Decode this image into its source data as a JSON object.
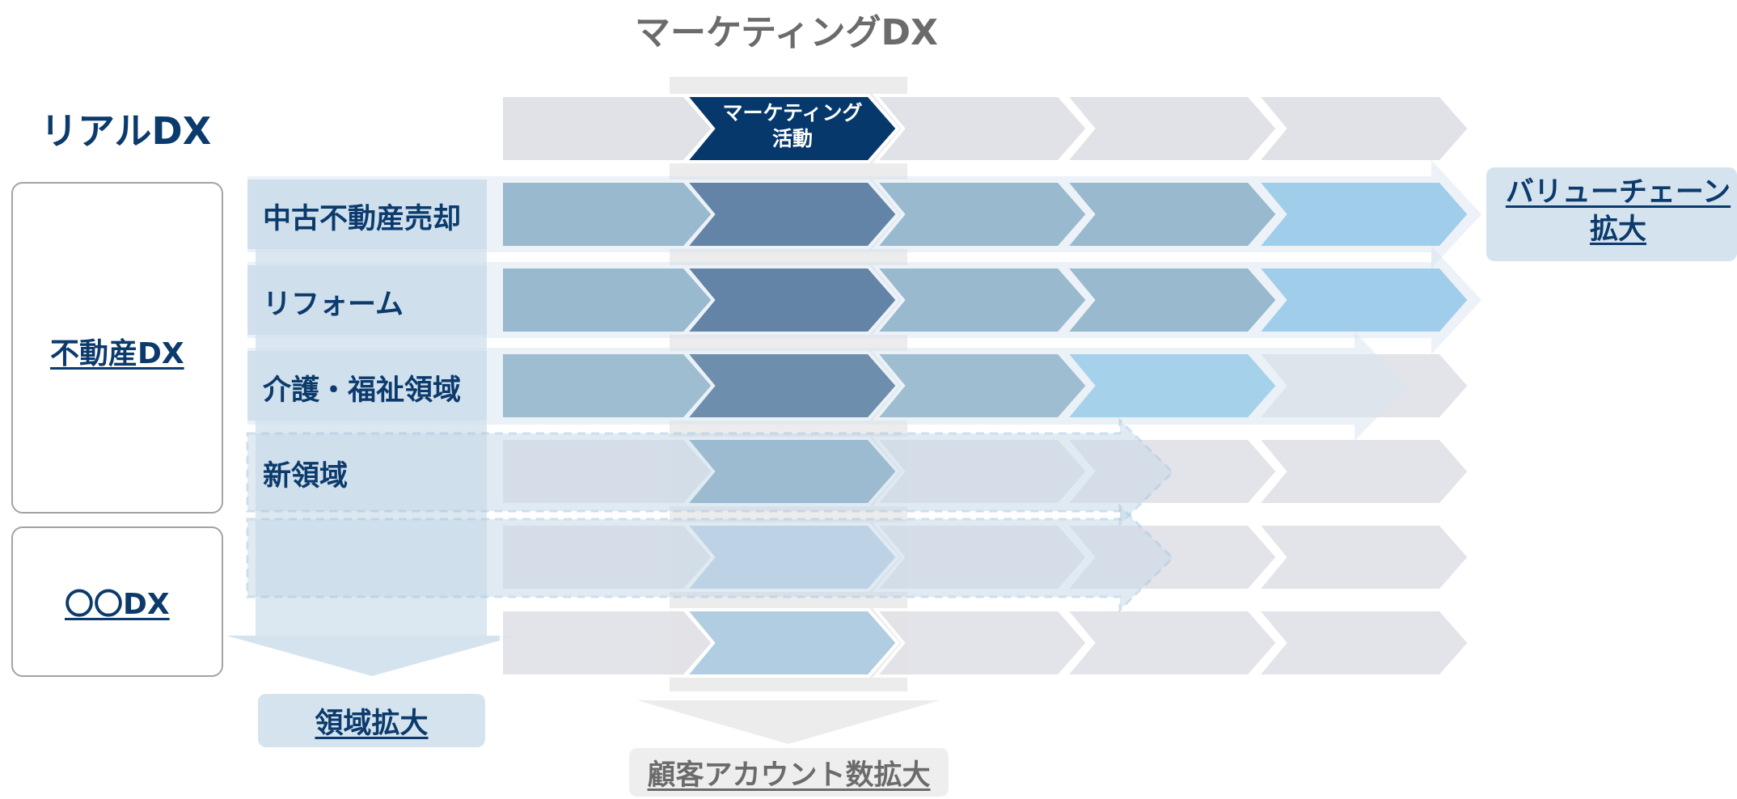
{
  "title": "マーケティングDX",
  "real_dx_label": "リアルDX",
  "marketing_activity": "マーケティング\n活動",
  "categories": [
    {
      "label": "不動産DX",
      "link": true
    },
    {
      "label": "〇〇DX",
      "link": true
    }
  ],
  "rows": [
    {
      "label": "中古不動産売却"
    },
    {
      "label": "リフォーム"
    },
    {
      "label": "介護・福祉領域"
    },
    {
      "label": "新領域"
    },
    {
      "label": ""
    }
  ],
  "expansion": {
    "domain": "領域拡大",
    "value_chain": "バリューチェーン\n拡大",
    "customer_accounts": "顧客アカウント数拡大"
  },
  "colors": {
    "navy": "#06386b",
    "steel": "#6797b3",
    "sky": "#75bee6",
    "pale": "#b1cde2",
    "grey": "#e1e2e7",
    "label_bg": "#c8d9e8",
    "title_grey": "#6b6b6b"
  }
}
